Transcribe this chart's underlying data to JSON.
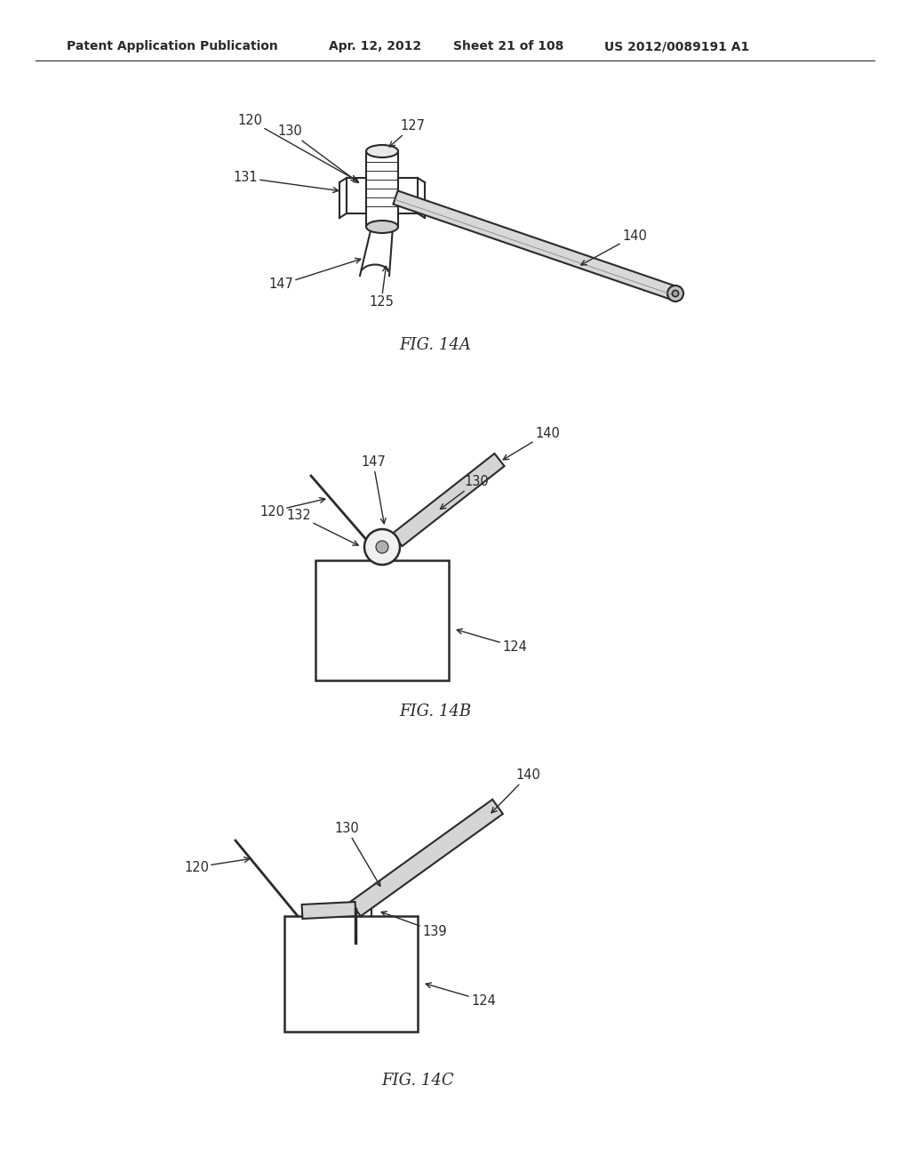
{
  "bg_color": "#ffffff",
  "header_text": "Patent Application Publication",
  "header_date": "Apr. 12, 2012",
  "header_sheet": "Sheet 21 of 108",
  "header_patent": "US 2012/0089191 A1",
  "fig14a_label": "FIG. 14A",
  "fig14b_label": "FIG. 14B",
  "fig14c_label": "FIG. 14C",
  "line_color": "#2a2a2a",
  "line_width": 1.5,
  "label_fontsize": 10.5,
  "header_fontsize": 10
}
